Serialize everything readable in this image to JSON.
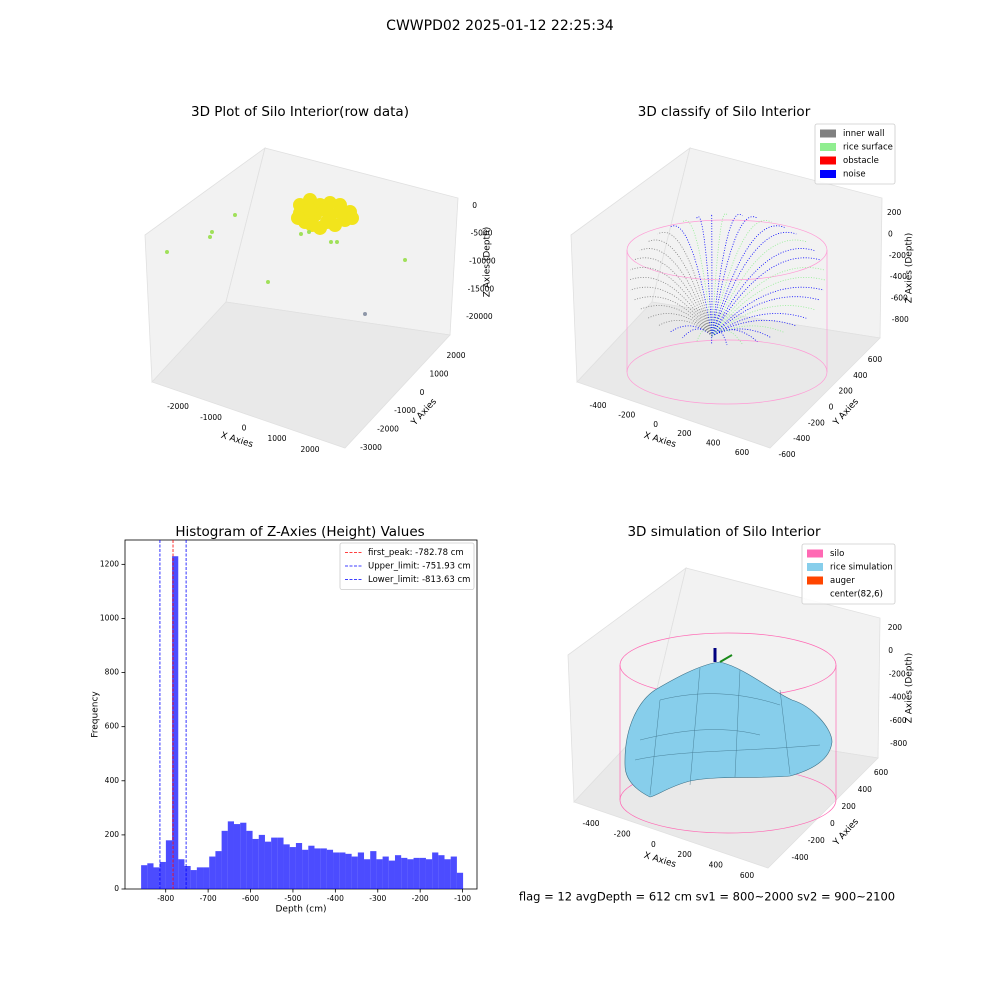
{
  "title": "CWWPD02 2025-01-12 22:25:34",
  "footer": "flag = 12   avgDepth = 612 cm   sv1 = 800~2000  sv2 = 900~2100",
  "chart_data": [
    {
      "type": "scatter3d",
      "title": "3D Plot of Silo Interior(row data)",
      "xlabel": "X Axies",
      "ylabel": "Y Axies",
      "zlabel": "Z Axies (Depth)",
      "xlim": [
        -2700,
        2700
      ],
      "ylim": [
        -3400,
        2600
      ],
      "zlim": [
        -22000,
        1000
      ],
      "xticks": [
        -2000,
        -1000,
        0,
        1000,
        2000
      ],
      "yticks": [
        -3000,
        -2000,
        -1000,
        0,
        1000,
        2000
      ],
      "zticks": [
        0,
        -5000,
        -10000,
        -15000,
        -20000
      ],
      "series": [
        {
          "color": "#f2e41c",
          "x": [
            -515,
            -212,
            91,
            394,
            697,
            1000,
            848,
            545,
            91,
            -364,
            -515,
            -61,
            394,
            697,
            242,
            -212,
            1061,
            -576,
            303,
            -152
          ],
          "y": [
            1000,
            1000,
            1000,
            1000,
            1000,
            1000,
            1000,
            1000,
            1000,
            1000,
            1000,
            1000,
            1000,
            1000,
            1000,
            1000,
            1000,
            1000,
            1000,
            1000
          ],
          "z": [
            -4270,
            -2800,
            -3130,
            -2210,
            -2000,
            -2680,
            -4390,
            -5860,
            -7230,
            -7020,
            -5700,
            -5200,
            -4360,
            -3250,
            -3750,
            -4590,
            -3640,
            -6700,
            -5770,
            -7160
          ]
        },
        {
          "color": "#a0e05a",
          "x": [
            -2485,
            -2727,
            -2667,
            -1970,
            -970,
            30,
            273,
            939,
            1121,
            2152
          ],
          "y": [
            -3000,
            0,
            0,
            0,
            0,
            0,
            0,
            0,
            0,
            2000
          ],
          "z": [
            -3140,
            -10820,
            -9820,
            -5480,
            -15570,
            -5120,
            -4300,
            -4840,
            -4500,
            -12390
          ]
        },
        {
          "color": "#8e97a8",
          "x": [
            1970
          ],
          "y": [
            0
          ],
          "z": [
            -15770
          ]
        }
      ]
    },
    {
      "type": "scatter3d",
      "title": "3D classify of Silo Interior",
      "xlabel": "X Axies",
      "ylabel": "Y Axies",
      "zlabel": "Z Axies (Depth)",
      "xlim": [
        -500,
        700
      ],
      "ylim": [
        -700,
        700
      ],
      "zlim": [
        -950,
        300
      ],
      "xticks": [
        -400,
        -200,
        0,
        200,
        400,
        600
      ],
      "yticks": [
        -600,
        -400,
        -200,
        0,
        200,
        400,
        600
      ],
      "zticks": [
        200,
        0,
        -200,
        -400,
        -600,
        -800
      ],
      "legend": {
        "loc": "upper right",
        "entries": [
          {
            "name": "inner wall",
            "color": "#808080"
          },
          {
            "name": "rice surface",
            "color": "#90ee90"
          },
          {
            "name": "obstacle",
            "color": "#ff0000"
          },
          {
            "name": "noise",
            "color": "#0000ff"
          }
        ]
      }
    },
    {
      "type": "histogram",
      "title": "Histogram of Z-Axies (Height) Values",
      "xlabel": "Depth (cm)",
      "ylabel": "Frequency",
      "color": "#0000ff",
      "alpha": 0.7,
      "xlim": [
        -896,
        -66
      ],
      "ylim": [
        0,
        1290
      ],
      "xticks": [
        -800,
        -700,
        -600,
        -500,
        -400,
        -300,
        -200,
        -100
      ],
      "yticks": [
        0,
        200,
        400,
        600,
        800,
        1000,
        1200
      ],
      "bins": [
        -858.0,
        -843.4,
        -828.8,
        -814.2,
        -799.6,
        -785.0,
        -770.4,
        -755.8,
        -741.2,
        -726.6,
        -712.0,
        -697.4,
        -682.8,
        -668.2,
        -653.6,
        -639.0,
        -624.4,
        -609.8,
        -595.2,
        -580.6,
        -566.0,
        -551.4,
        -536.8,
        -522.2,
        -507.6,
        -493.0,
        -478.4,
        -463.8,
        -449.2,
        -434.6,
        -420.0,
        -405.4,
        -390.8,
        -376.2,
        -361.6,
        -347.0,
        -332.4,
        -317.8,
        -303.2,
        -288.6,
        -274.0,
        -259.4,
        -244.8,
        -230.2,
        -215.6,
        -201.0,
        -186.4,
        -171.8,
        -157.2,
        -142.6,
        -128.0,
        -113.4,
        -98.8
      ],
      "values": [
        88,
        95,
        80,
        100,
        180,
        1230,
        110,
        85,
        70,
        80,
        80,
        120,
        140,
        215,
        250,
        240,
        245,
        215,
        185,
        200,
        175,
        190,
        190,
        165,
        155,
        170,
        145,
        160,
        150,
        150,
        145,
        135,
        135,
        130,
        120,
        135,
        110,
        140,
        110,
        120,
        105,
        125,
        115,
        110,
        115,
        115,
        110,
        135,
        125,
        110,
        120,
        60
      ],
      "vlines": [
        {
          "value": -782.78,
          "label": "first_peak: -782.78 cm",
          "color": "#ff0000"
        },
        {
          "value": -751.93,
          "label": "Upper_limit: -751.93 cm",
          "color": "#0000ff"
        },
        {
          "value": -813.63,
          "label": "Lower_limit: -813.63 cm",
          "color": "#0000ff"
        }
      ],
      "legend": {
        "loc": "upper right"
      }
    },
    {
      "type": "surface3d",
      "title": "3D simulation of Silo Interior",
      "xlabel": "X Axies",
      "ylabel": "Y Axies",
      "zlabel": "Z Axies (Depth)",
      "xlim": [
        -500,
        700
      ],
      "ylim": [
        -550,
        700
      ],
      "zlim": [
        -950,
        300
      ],
      "xticks": [
        -400,
        -200,
        0,
        200,
        400,
        600
      ],
      "yticks": [
        -400,
        -200,
        0,
        200,
        400,
        600
      ],
      "zticks": [
        200,
        0,
        -200,
        -400,
        -600,
        -800
      ],
      "legend": {
        "loc": "upper right",
        "entries": [
          {
            "name": "silo",
            "color": "#ff69b4"
          },
          {
            "name": "rice simulation",
            "color": "#87ceeb"
          },
          {
            "name": "auger",
            "color": "#ff4500"
          },
          {
            "name": "center(82,6)",
            "color": "#ffffff"
          }
        ]
      }
    }
  ]
}
